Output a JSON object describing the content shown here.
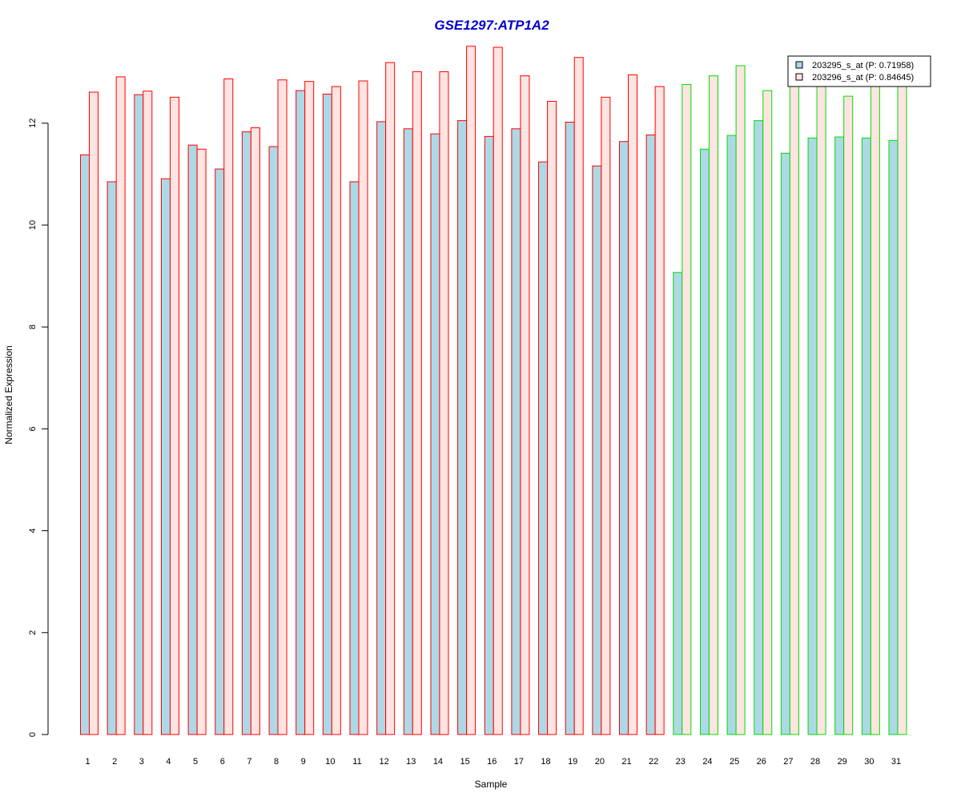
{
  "chart_data": {
    "type": "bar",
    "title": "GSE1297:ATP1A2",
    "xlabel": "Sample",
    "ylabel": "Normalized Expression",
    "ylim": [
      0,
      13.6
    ],
    "yticks": [
      0,
      2,
      4,
      6,
      8,
      10,
      12
    ],
    "grid": false,
    "legend_position": "top-right",
    "categories": [
      "1",
      "2",
      "3",
      "4",
      "5",
      "6",
      "7",
      "8",
      "9",
      "10",
      "11",
      "12",
      "13",
      "14",
      "15",
      "16",
      "17",
      "18",
      "19",
      "20",
      "21",
      "22",
      "23",
      "24",
      "25",
      "26",
      "27",
      "28",
      "29",
      "30",
      "31"
    ],
    "group_border_colors": [
      "#ff0000",
      "#ff0000",
      "#ff0000",
      "#ff0000",
      "#ff0000",
      "#ff0000",
      "#ff0000",
      "#ff0000",
      "#ff0000",
      "#ff0000",
      "#ff0000",
      "#ff0000",
      "#ff0000",
      "#ff0000",
      "#ff0000",
      "#ff0000",
      "#ff0000",
      "#ff0000",
      "#ff0000",
      "#ff0000",
      "#ff0000",
      "#ff0000",
      "#00dd00",
      "#00dd00",
      "#00dd00",
      "#00dd00",
      "#00dd00",
      "#00dd00",
      "#00dd00",
      "#00dd00",
      "#00dd00"
    ],
    "series": [
      {
        "name": "203295_s_at (P: 0.71958)",
        "fill": "#add8e6",
        "values": [
          11.38,
          10.85,
          12.56,
          10.91,
          11.57,
          11.1,
          11.83,
          11.54,
          12.64,
          12.57,
          10.85,
          12.03,
          11.89,
          11.79,
          12.05,
          11.74,
          11.89,
          11.24,
          12.02,
          11.16,
          11.64,
          11.77,
          9.07,
          11.49,
          11.76,
          12.05,
          11.41,
          11.71,
          11.73,
          11.71,
          11.66
        ]
      },
      {
        "name": "203296_s_at (P: 0.84645)",
        "fill": "#ffe4e1",
        "values": [
          12.61,
          12.91,
          12.63,
          12.51,
          11.49,
          12.87,
          11.91,
          12.85,
          12.82,
          12.72,
          12.83,
          13.19,
          13.01,
          13.01,
          13.51,
          13.49,
          12.93,
          12.43,
          13.29,
          12.51,
          12.95,
          12.72,
          12.76,
          12.93,
          13.13,
          12.64,
          12.8,
          12.8,
          12.53,
          12.8,
          12.8
        ]
      }
    ]
  }
}
